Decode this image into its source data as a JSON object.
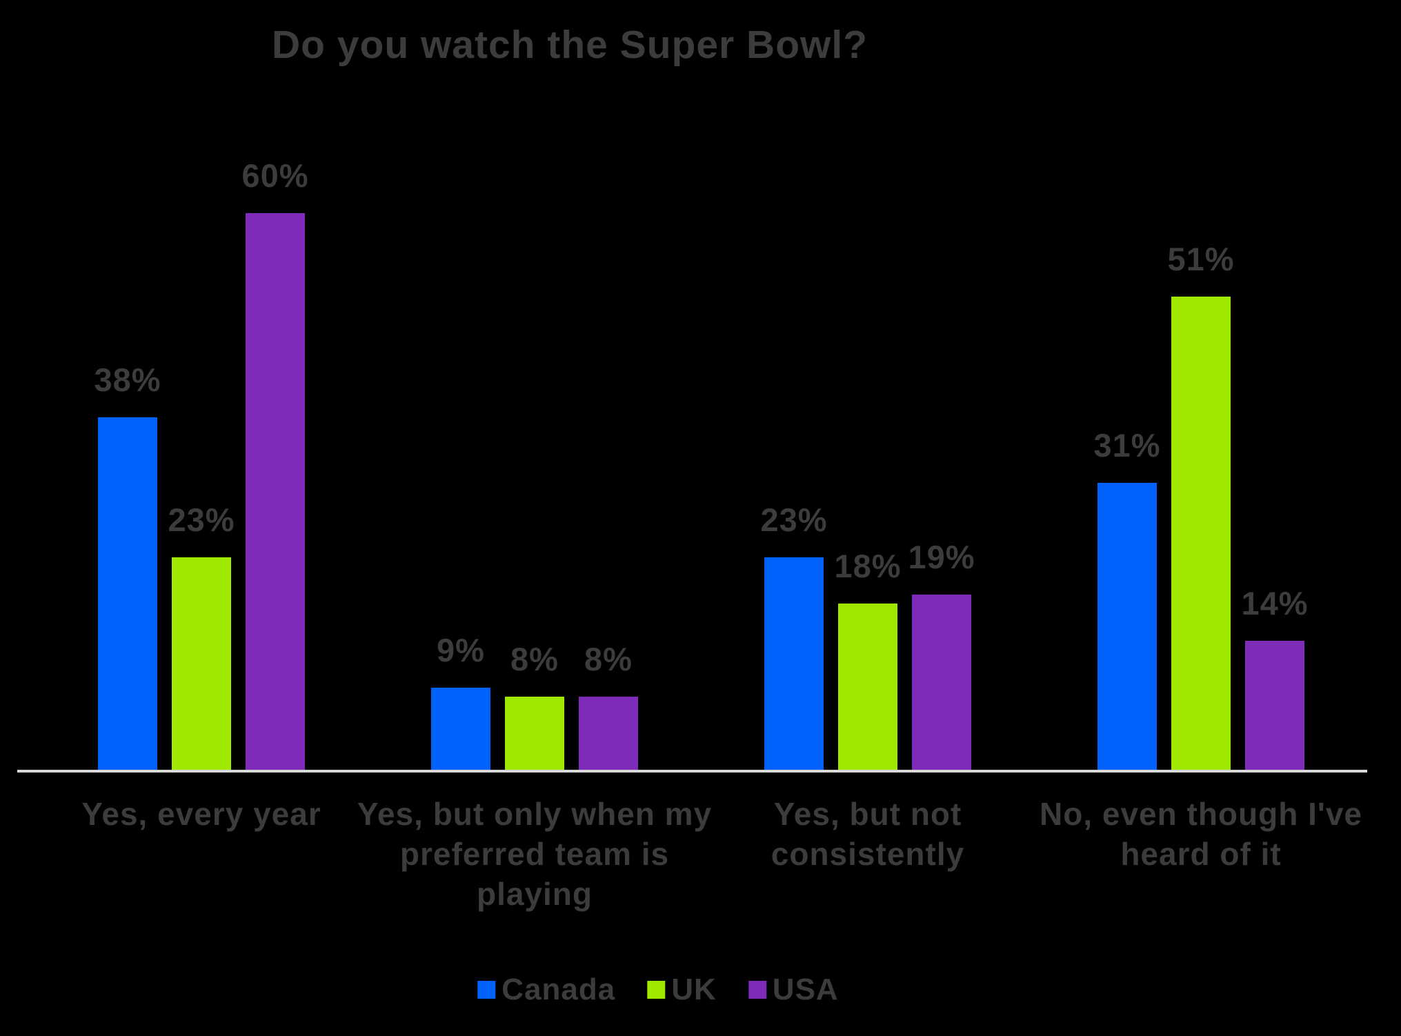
{
  "title": "Do you watch the Super Bowl?",
  "chart_data": {
    "type": "bar",
    "title": "Do you watch the Super Bowl?",
    "categories": [
      "Yes, every year",
      "Yes, but only when my preferred team is playing",
      "Yes, but not consistently",
      "No, even though I've heard of it"
    ],
    "series": [
      {
        "name": "Canada",
        "color": "#0062fb",
        "values": [
          38,
          9,
          23,
          31
        ]
      },
      {
        "name": "UK",
        "color": "#9fe800",
        "values": [
          23,
          8,
          18,
          51
        ]
      },
      {
        "name": "USA",
        "color": "#7d2bb8",
        "values": [
          60,
          8,
          19,
          14
        ]
      }
    ],
    "value_suffix": "%",
    "ylim": [
      0,
      100
    ],
    "grid": false,
    "legend_position": "bottom",
    "background": "#000000",
    "text_color": "#3c3c3e",
    "axis_line_color": "#d9d9d9"
  }
}
